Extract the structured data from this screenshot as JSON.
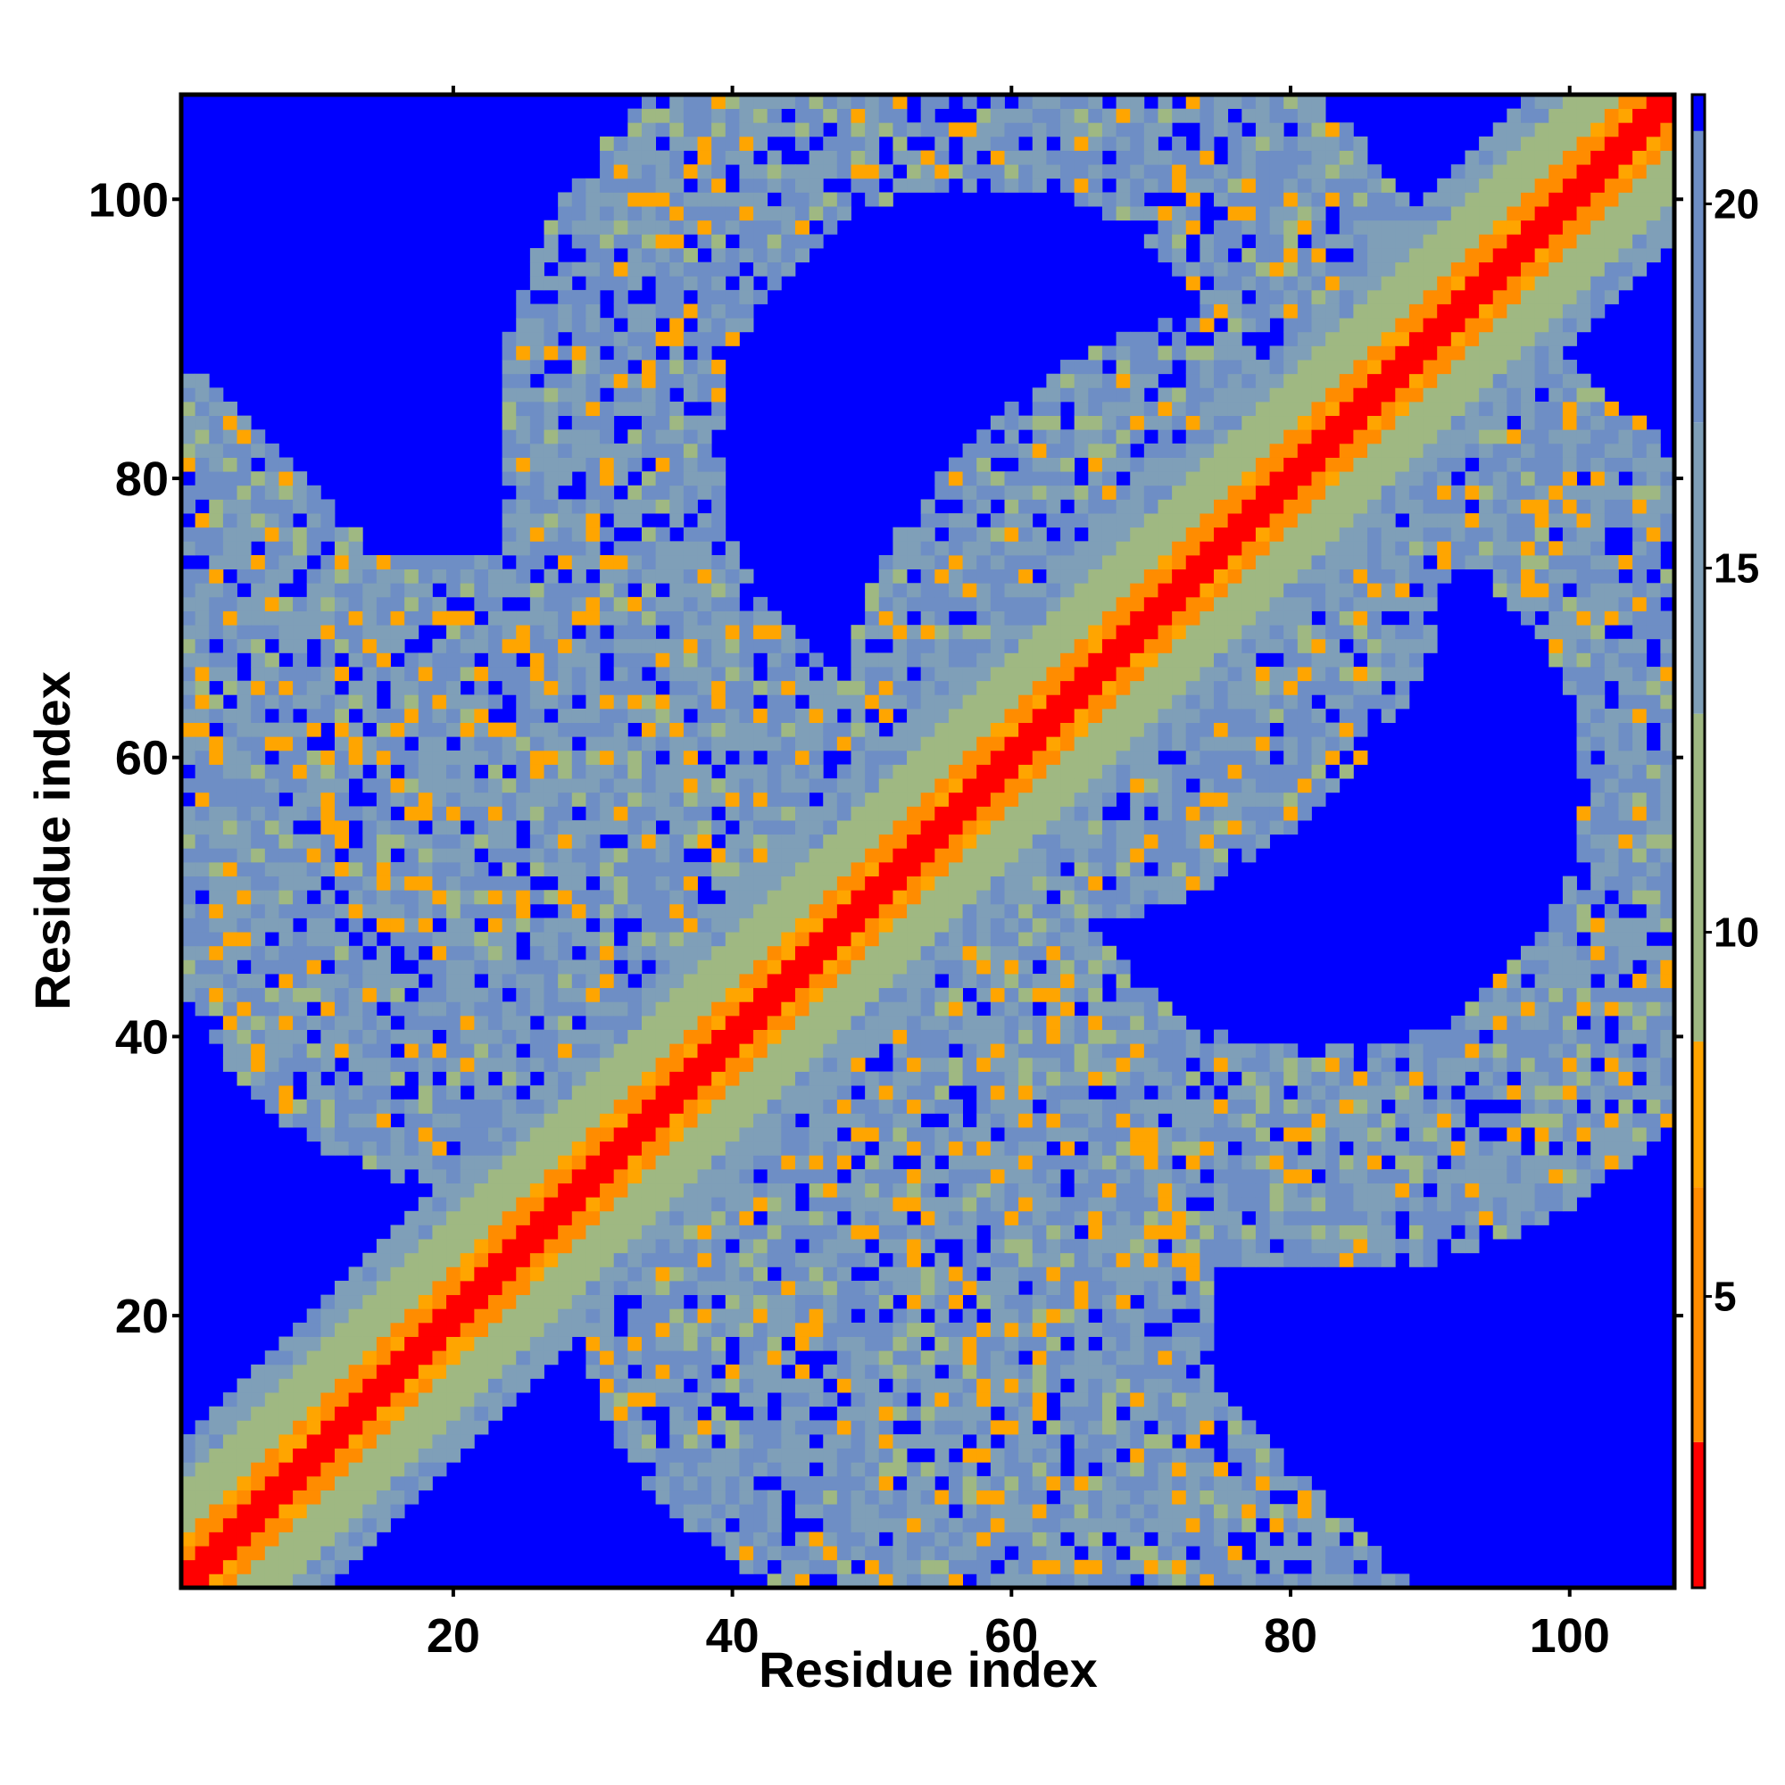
{
  "chart_data": {
    "type": "heatmap",
    "title": "",
    "xlabel": "Residue index",
    "ylabel": "Residue index",
    "n_residues": 107,
    "xlim": [
      1,
      107
    ],
    "ylim": [
      1,
      107
    ],
    "x_ticks": [
      20,
      40,
      60,
      80,
      100
    ],
    "y_ticks": [
      20,
      40,
      60,
      80,
      100
    ],
    "colorbar": {
      "ticks": [
        5,
        10,
        15,
        20
      ],
      "range": [
        1,
        21.5
      ],
      "cutoff": 21.5
    },
    "colors": {
      "background": "#0000FF",
      "near": "#FF0000",
      "close": "#FF8C00",
      "medium": "#FFA500",
      "mid": "#9FB882",
      "far": "#7F9FB8",
      "edge": "#6E8EC5"
    },
    "description_bands": [
      {
        "name": "main-diagonal",
        "values": "|i-j|<=1 -> 0.5-2; |i-j|<=3 -> 4-7; |i-j|<=7 -> 9-12; |i-j|<=11 -> 14-19"
      },
      {
        "name": "antiparallel-sheet-1",
        "i_range": [
          1,
          40
        ],
        "j_range": [
          35,
          75
        ],
        "values": "8-20 with sparse gaps"
      },
      {
        "name": "antiparallel-sheet-2",
        "i_range": [
          45,
          95
        ],
        "j_range": [
          5,
          60
        ],
        "values": "8-20 with sparse gaps"
      },
      {
        "name": "ring-upper",
        "i_range": [
          30,
          75
        ],
        "j_range": [
          62,
          105
        ],
        "values": "8-20 with sparse gaps"
      },
      {
        "name": "ring-right",
        "i_range": [
          75,
          105
        ],
        "j_range": [
          30,
          72
        ],
        "values": "8-20 with sparse gaps"
      }
    ]
  }
}
